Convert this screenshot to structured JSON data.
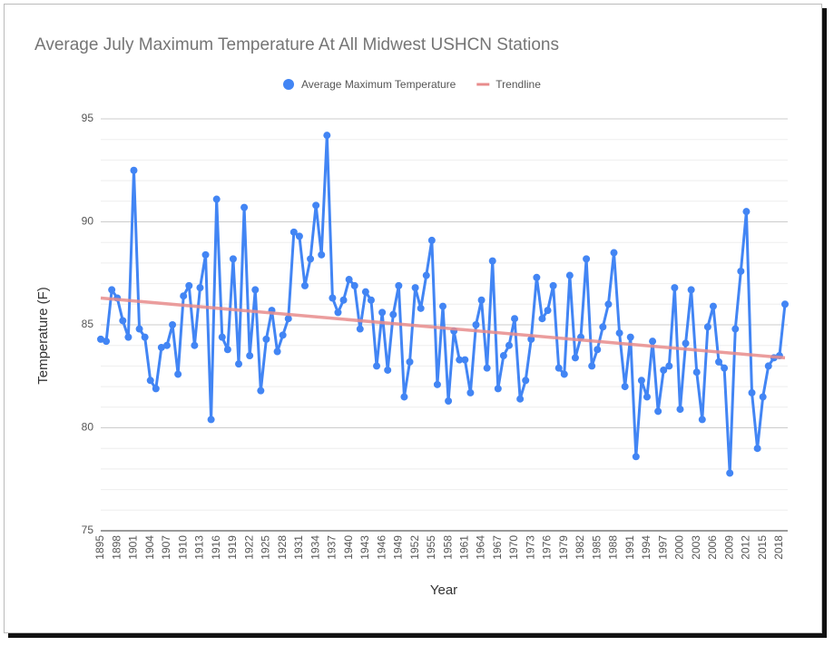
{
  "chart_data": {
    "type": "line",
    "title": "Average July Maximum Temperature At All Midwest USHCN Stations",
    "x_label": "Year",
    "y_label": "Temperature (F)",
    "x": [
      1895,
      1896,
      1897,
      1898,
      1899,
      1900,
      1901,
      1902,
      1903,
      1904,
      1905,
      1906,
      1907,
      1908,
      1909,
      1910,
      1911,
      1912,
      1913,
      1914,
      1915,
      1916,
      1917,
      1918,
      1919,
      1920,
      1921,
      1922,
      1923,
      1924,
      1925,
      1926,
      1927,
      1928,
      1929,
      1930,
      1931,
      1932,
      1933,
      1934,
      1935,
      1936,
      1937,
      1938,
      1939,
      1940,
      1941,
      1942,
      1943,
      1944,
      1945,
      1946,
      1947,
      1948,
      1949,
      1950,
      1951,
      1952,
      1953,
      1954,
      1955,
      1956,
      1957,
      1958,
      1959,
      1960,
      1961,
      1962,
      1963,
      1964,
      1965,
      1966,
      1967,
      1968,
      1969,
      1970,
      1971,
      1972,
      1973,
      1974,
      1975,
      1976,
      1977,
      1978,
      1979,
      1980,
      1981,
      1982,
      1983,
      1984,
      1985,
      1986,
      1987,
      1988,
      1989,
      1990,
      1991,
      1992,
      1993,
      1994,
      1995,
      1996,
      1997,
      1998,
      1999,
      2000,
      2001,
      2002,
      2003,
      2004,
      2005,
      2006,
      2007,
      2008,
      2009,
      2010,
      2011,
      2012,
      2013,
      2014,
      2015,
      2016,
      2017,
      2018,
      2019
    ],
    "series": [
      {
        "name": "Average Maximum Temperature",
        "color": "#4285f4",
        "values": [
          84.3,
          84.2,
          86.7,
          86.3,
          85.2,
          84.4,
          92.5,
          84.8,
          84.4,
          82.3,
          81.9,
          83.9,
          84.0,
          85.0,
          82.6,
          86.4,
          86.9,
          84.0,
          86.8,
          88.4,
          80.4,
          91.1,
          84.4,
          83.8,
          88.2,
          83.1,
          90.7,
          83.5,
          86.7,
          81.8,
          84.3,
          85.7,
          83.7,
          84.5,
          85.3,
          89.5,
          89.3,
          86.9,
          88.2,
          90.8,
          88.4,
          94.2,
          86.3,
          85.6,
          86.2,
          87.2,
          86.9,
          84.8,
          86.6,
          86.2,
          83.0,
          85.6,
          82.8,
          85.5,
          86.9,
          81.5,
          83.2,
          86.8,
          85.8,
          87.4,
          89.1,
          82.1,
          85.9,
          81.3,
          84.7,
          83.3,
          83.3,
          81.7,
          85.0,
          86.2,
          82.9,
          88.1,
          81.9,
          83.5,
          84.0,
          85.3,
          81.4,
          82.3,
          84.3,
          87.3,
          85.3,
          85.7,
          86.9,
          82.9,
          82.6,
          87.4,
          83.4,
          84.4,
          88.2,
          83.0,
          83.8,
          84.9,
          86.0,
          88.5,
          84.6,
          82.0,
          84.4,
          78.6,
          82.3,
          81.5,
          84.2,
          80.8,
          82.8,
          83.0,
          86.8,
          80.9,
          84.1,
          86.7,
          82.7,
          80.4,
          84.9,
          85.9,
          83.2,
          82.9,
          77.8,
          84.8,
          87.6,
          90.5,
          81.7,
          79.0,
          81.5,
          83.0,
          83.4,
          83.5,
          86.0
        ]
      },
      {
        "name": "Trendline",
        "color": "#e88c8c",
        "x": [
          1895,
          2019
        ],
        "values": [
          86.3,
          83.4
        ]
      }
    ],
    "xlim": [
      1895,
      2019
    ],
    "xticks": [
      1895,
      1898,
      1901,
      1904,
      1907,
      1910,
      1913,
      1916,
      1919,
      1922,
      1925,
      1928,
      1931,
      1934,
      1937,
      1940,
      1943,
      1946,
      1949,
      1952,
      1955,
      1958,
      1961,
      1964,
      1967,
      1970,
      1973,
      1976,
      1979,
      1982,
      1985,
      1988,
      1991,
      1994,
      1997,
      2000,
      2003,
      2006,
      2009,
      2012,
      2015,
      2018
    ],
    "ylim": [
      75,
      95
    ],
    "yticks": [
      75,
      80,
      85,
      90,
      95
    ],
    "minor_yticks": [
      76,
      77,
      78,
      79,
      81,
      82,
      83,
      84,
      86,
      87,
      88,
      89,
      91,
      92,
      93,
      94
    ],
    "grid": true,
    "legend": "top"
  }
}
